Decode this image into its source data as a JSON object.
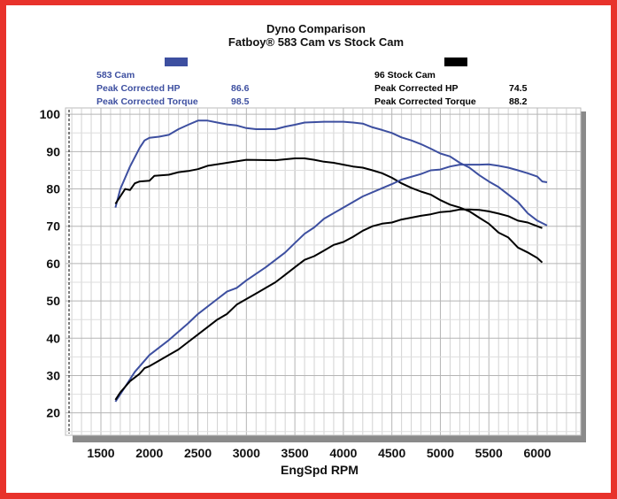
{
  "chart_data": {
    "type": "line",
    "title": "Dyno Comparison",
    "subtitle": "Fatboy® 583 Cam vs Stock Cam",
    "xlabel": "EngSpd RPM",
    "ylabel": "",
    "xlim": [
      1135,
      6447
    ],
    "ylim": [
      14,
      101.7
    ],
    "xticks": [
      1500,
      2000,
      2500,
      3000,
      3500,
      4000,
      4500,
      5000,
      5500,
      6000
    ],
    "yticks": [
      20,
      30,
      40,
      50,
      60,
      70,
      80,
      90,
      100
    ],
    "grid": true,
    "legend": [
      {
        "name": "583 Cam",
        "color": "#3d4fa0",
        "stats": [
          {
            "label": "Peak Corrected HP",
            "value": "86.6"
          },
          {
            "label": "Peak Corrected Torque",
            "value": "98.5"
          }
        ]
      },
      {
        "name": "96 Stock Cam",
        "color": "#000000",
        "stats": [
          {
            "label": "Peak Corrected HP",
            "value": "74.5"
          },
          {
            "label": "Peak Corrected Torque",
            "value": "88.2"
          }
        ]
      }
    ],
    "series": [
      {
        "group": "583 Cam",
        "measure": "torque",
        "color": "#3d4fa0",
        "x": [
          1650,
          1700,
          1800,
          1900,
          1950,
          2000,
          2100,
          2200,
          2300,
          2400,
          2500,
          2600,
          2700,
          2800,
          2900,
          3000,
          3100,
          3300,
          3400,
          3500,
          3600,
          3800,
          4000,
          4100,
          4200,
          4300,
          4400,
          4500,
          4600,
          4700,
          4800,
          4900,
          5000,
          5100,
          5200,
          5300,
          5400,
          5500,
          5600,
          5700,
          5800,
          5900,
          6000,
          6100
        ],
        "y": [
          75,
          80,
          86,
          91,
          93,
          93.7,
          94,
          94.5,
          96,
          97.2,
          98.3,
          98.3,
          97.8,
          97.3,
          97,
          96.3,
          96,
          96,
          96.7,
          97.2,
          97.8,
          98,
          98,
          97.8,
          97.5,
          96.5,
          95.8,
          95,
          93.8,
          93,
          92,
          90.8,
          89.5,
          88.7,
          87,
          85.7,
          83.7,
          82,
          80.5,
          78.5,
          76.5,
          73.5,
          71.5,
          70.2
        ]
      },
      {
        "group": "96 Stock Cam",
        "measure": "torque",
        "color": "#000000",
        "x": [
          1650,
          1700,
          1750,
          1800,
          1850,
          1900,
          2000,
          2050,
          2200,
          2300,
          2400,
          2500,
          2600,
          2800,
          3000,
          3300,
          3500,
          3600,
          3700,
          3800,
          3900,
          4000,
          4100,
          4200,
          4300,
          4400,
          4500,
          4600,
          4700,
          4800,
          4900,
          5000,
          5100,
          5200,
          5300,
          5400,
          5500,
          5600,
          5700,
          5800,
          5900,
          6000,
          6050
        ],
        "y": [
          76,
          78,
          80,
          79.7,
          81.5,
          82,
          82.2,
          83.5,
          83.8,
          84.5,
          84.8,
          85.3,
          86.2,
          87,
          87.8,
          87.7,
          88.2,
          88.2,
          87.8,
          87.3,
          87,
          86.5,
          86,
          85.7,
          85,
          84.2,
          83,
          81.5,
          80.3,
          79.3,
          78.5,
          77,
          75.8,
          75,
          74,
          72.3,
          70.7,
          68.3,
          67,
          64.3,
          63,
          61.5,
          60.3
        ]
      },
      {
        "group": "583 Cam",
        "measure": "hp",
        "color": "#3d4fa0",
        "x": [
          1650,
          1750,
          1850,
          2000,
          2200,
          2400,
          2500,
          2700,
          2800,
          2900,
          3000,
          3200,
          3400,
          3500,
          3600,
          3700,
          3800,
          4000,
          4200,
          4400,
          4500,
          4600,
          4800,
          4900,
          5000,
          5100,
          5200,
          5400,
          5500,
          5600,
          5700,
          5800,
          5900,
          6000,
          6050,
          6100
        ],
        "y": [
          23,
          27,
          31,
          35.5,
          39.5,
          44,
          46.5,
          50.5,
          52.5,
          53.5,
          55.5,
          59,
          63,
          65.5,
          68,
          69.7,
          72,
          75,
          78,
          80.2,
          81.3,
          82.5,
          84,
          85,
          85.2,
          86,
          86.5,
          86.5,
          86.6,
          86.2,
          85.7,
          85,
          84.2,
          83.3,
          82,
          81.8
        ]
      },
      {
        "group": "96 Stock Cam",
        "measure": "hp",
        "color": "#000000",
        "x": [
          1650,
          1700,
          1800,
          1900,
          1950,
          2000,
          2100,
          2200,
          2300,
          2400,
          2500,
          2600,
          2700,
          2800,
          2900,
          3000,
          3100,
          3200,
          3300,
          3400,
          3500,
          3600,
          3700,
          3800,
          3900,
          4000,
          4100,
          4200,
          4300,
          4400,
          4500,
          4600,
          4700,
          4800,
          4900,
          5000,
          5100,
          5200,
          5300,
          5400,
          5500,
          5600,
          5700,
          5800,
          5900,
          6000,
          6050
        ],
        "y": [
          23.5,
          25.5,
          28.5,
          30.5,
          32,
          32.5,
          34,
          35.5,
          37,
          39,
          41,
          43,
          45,
          46.5,
          49,
          50.5,
          52,
          53.5,
          55,
          57,
          59,
          61,
          62,
          63.5,
          65,
          65.8,
          67.2,
          68.8,
          70,
          70.7,
          71,
          71.8,
          72.3,
          72.8,
          73.2,
          73.8,
          74,
          74.5,
          74.5,
          74.4,
          74,
          73.4,
          72.7,
          71.5,
          71,
          70,
          69.5
        ]
      }
    ]
  }
}
